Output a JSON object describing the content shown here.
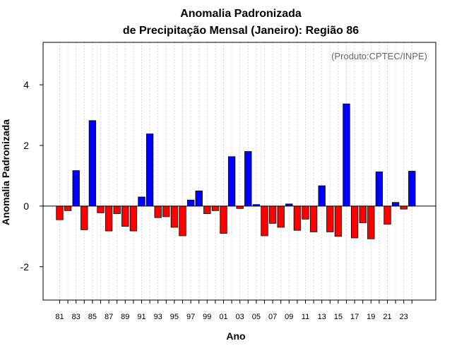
{
  "chart_data": {
    "type": "bar",
    "title_line1": "Anomalia Padronizada",
    "title_line2": "de Precipitação Mensal (Janeiro): Região 86",
    "xlabel": "Ano",
    "ylabel": "Anomalia Padronizada",
    "annotation": "(Produto:CPTEC/INPE)",
    "ylim": [
      -3.1,
      5.4
    ],
    "yticks": [
      -2,
      0,
      2,
      4
    ],
    "ytick_labels": [
      "-2",
      "0",
      "2",
      "4"
    ],
    "categories": [
      "81",
      "82",
      "83",
      "84",
      "85",
      "86",
      "87",
      "88",
      "89",
      "90",
      "91",
      "92",
      "93",
      "94",
      "95",
      "96",
      "97",
      "98",
      "99",
      "00",
      "01",
      "02",
      "03",
      "04",
      "05",
      "06",
      "07",
      "08",
      "09",
      "10",
      "11",
      "12",
      "13",
      "14",
      "15",
      "16",
      "17",
      "18",
      "19",
      "20",
      "21",
      "22",
      "23",
      "24"
    ],
    "xtick_labels": [
      "81",
      "83",
      "85",
      "87",
      "89",
      "91",
      "93",
      "95",
      "97",
      "99",
      "01",
      "03",
      "05",
      "07",
      "09",
      "11",
      "13",
      "15",
      "17",
      "19",
      "21",
      "23"
    ],
    "values": [
      -0.45,
      -0.15,
      1.17,
      -0.78,
      2.82,
      -0.22,
      -0.82,
      -0.25,
      -0.67,
      -0.82,
      0.3,
      2.38,
      -0.38,
      -0.35,
      -0.7,
      -0.98,
      0.2,
      0.5,
      -0.25,
      -0.15,
      -0.9,
      1.63,
      -0.08,
      1.8,
      0.05,
      -0.98,
      -0.57,
      -0.7,
      0.07,
      -0.8,
      -0.43,
      -0.85,
      0.67,
      -0.85,
      -1.0,
      3.37,
      -1.05,
      -0.55,
      -1.08,
      1.13,
      -0.6,
      0.12,
      -0.1,
      1.15
    ],
    "positive_color": "#0000ff",
    "negative_color": "#ff0000",
    "grid": true
  }
}
